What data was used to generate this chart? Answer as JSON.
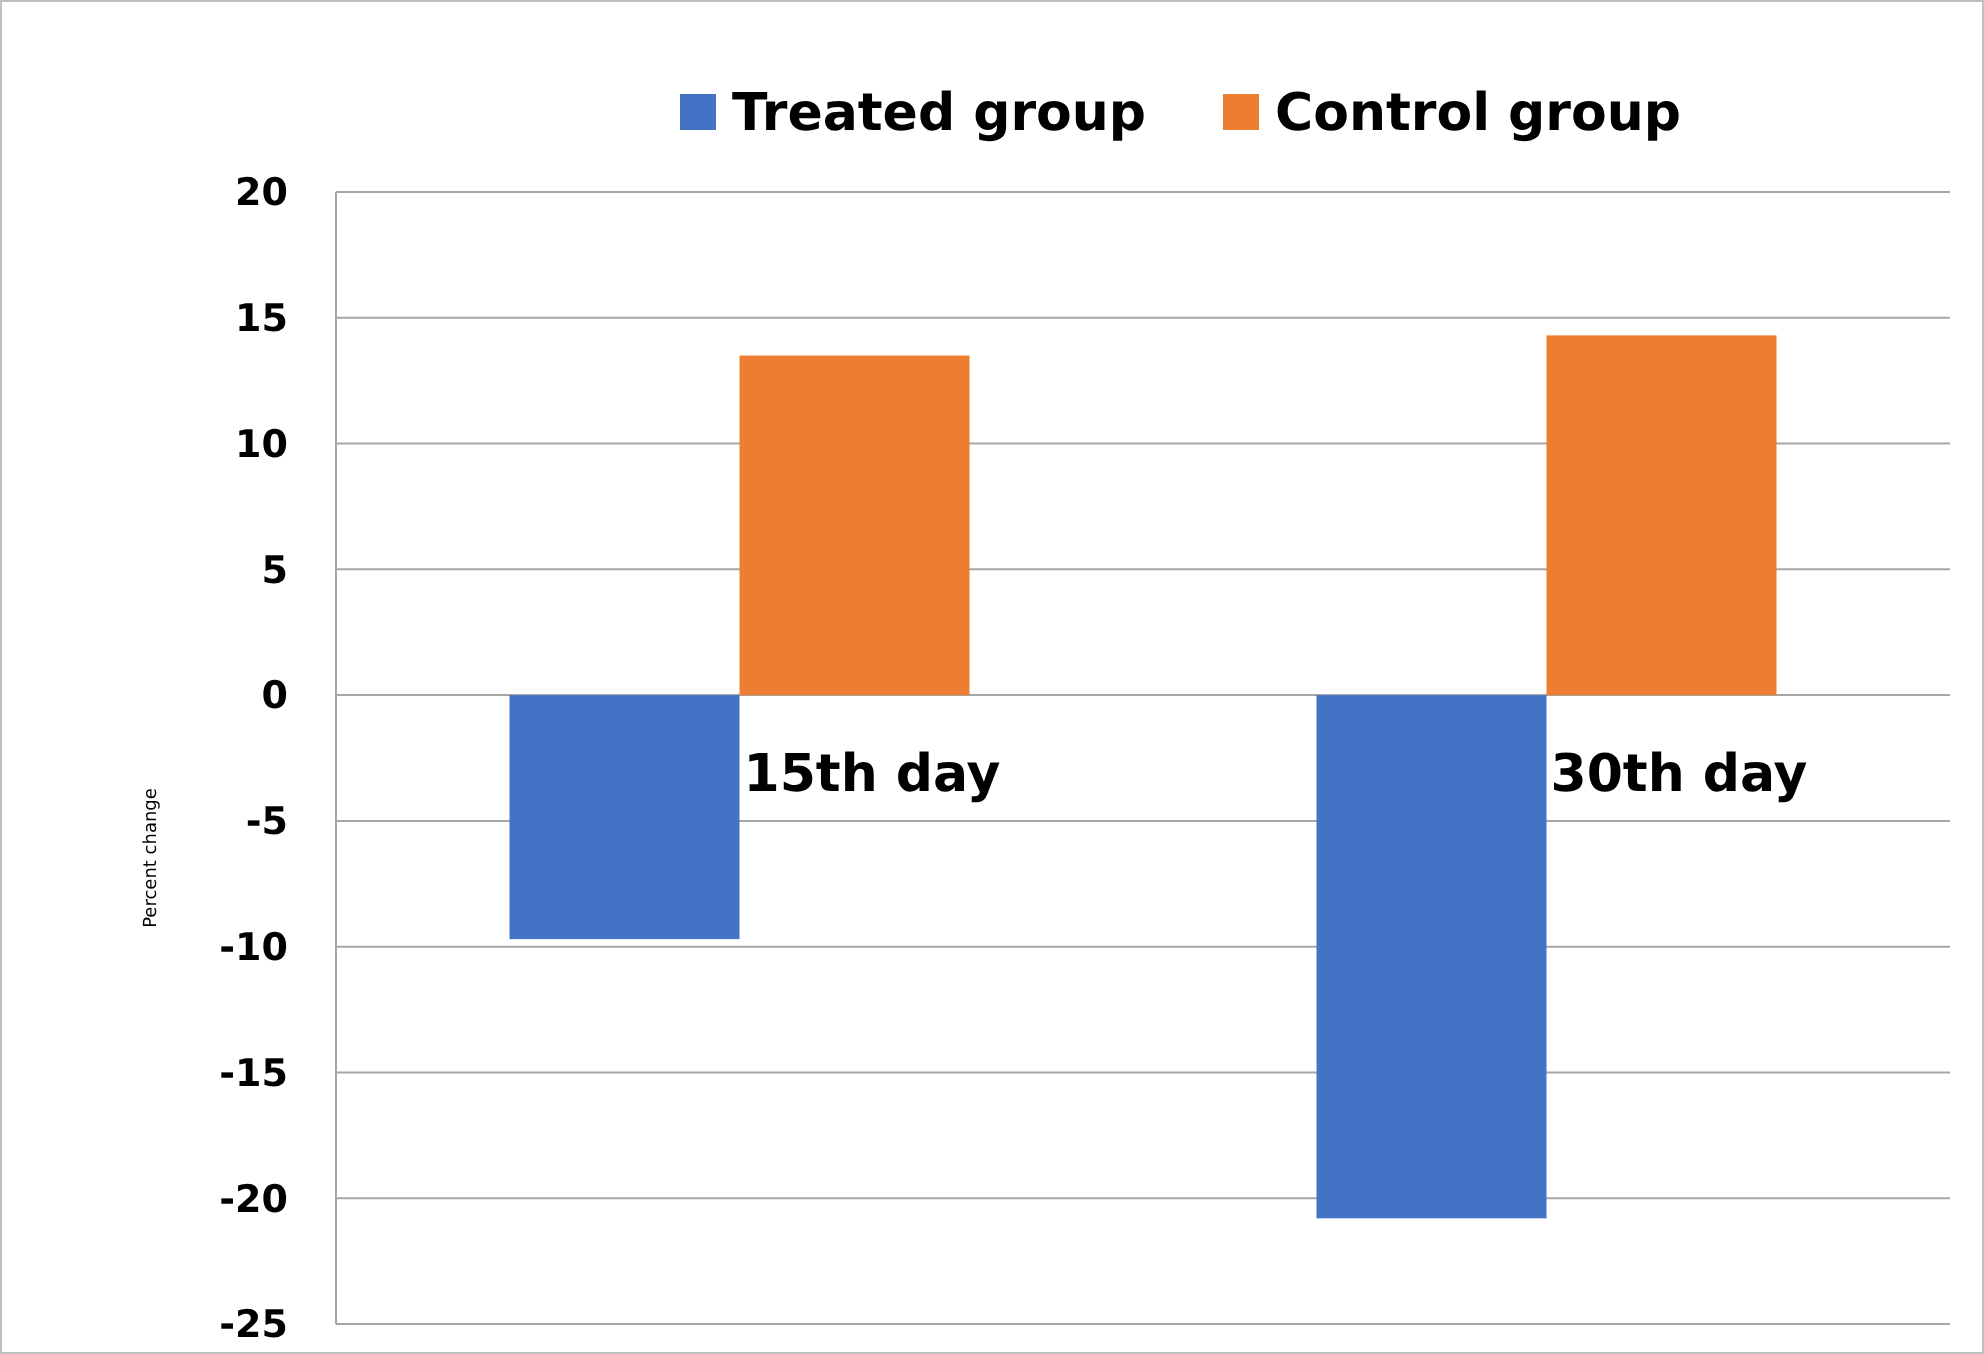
{
  "chart_data": {
    "type": "bar",
    "ylabel": "Percent change",
    "categories": [
      "15th day",
      "30th day"
    ],
    "series": [
      {
        "name": "Treated group",
        "color": "#4472c4",
        "values": [
          -9.7,
          -20.8
        ]
      },
      {
        "name": "Control group",
        "color": "#ed7d31",
        "values": [
          13.5,
          14.3
        ]
      }
    ],
    "ylim": [
      -25,
      20
    ],
    "yticks": [
      -25,
      -20,
      -15,
      -10,
      -5,
      0,
      5,
      10,
      15,
      20
    ],
    "grid": "y",
    "legend": "top"
  }
}
